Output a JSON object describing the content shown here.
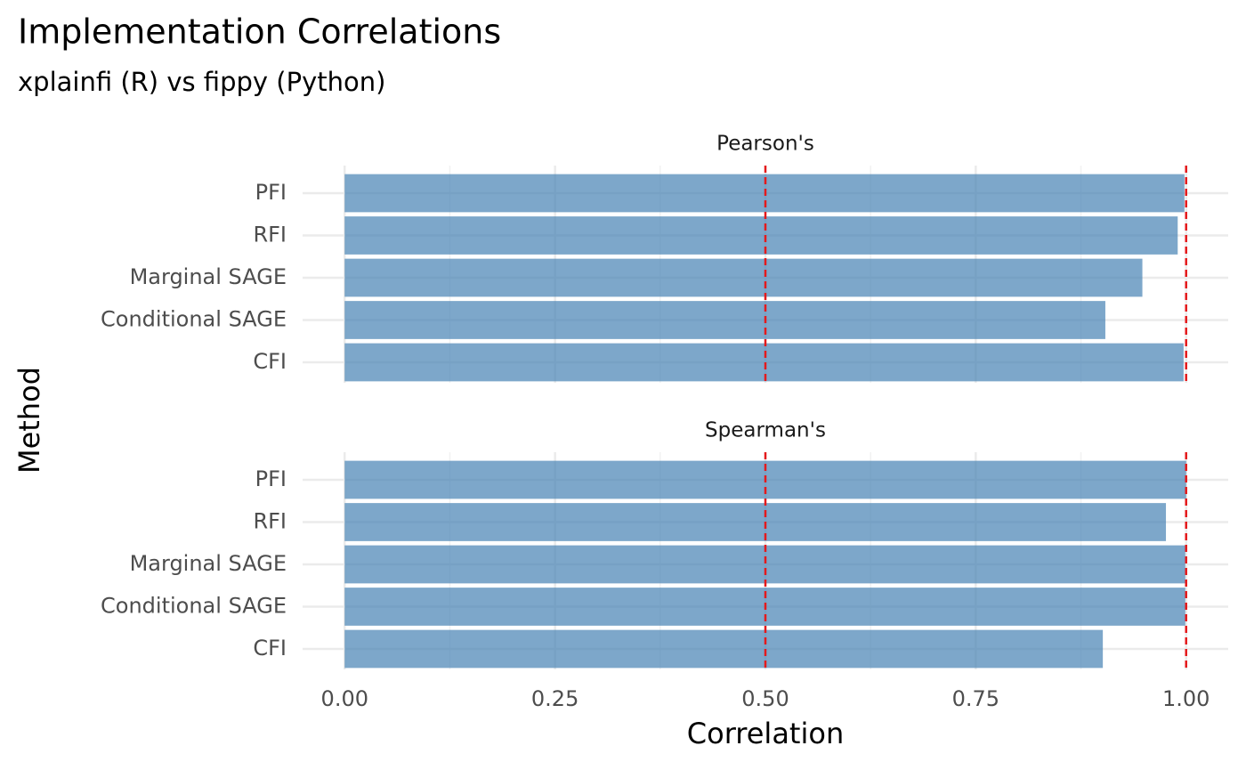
{
  "chart_data": {
    "type": "bar",
    "orientation": "horizontal",
    "facet": true,
    "title": "Implementation Correlations",
    "subtitle": "xplainfi (R) vs fippy (Python)",
    "x_label": "Correlation",
    "y_label": "Method",
    "categories": [
      "PFI",
      "RFI",
      "Marginal SAGE",
      "Conditional SAGE",
      "CFI"
    ],
    "series": [
      {
        "name": "Pearson's",
        "color": "#4682b4",
        "values": [
          0.998,
          0.99,
          0.948,
          0.904,
          0.997
        ]
      },
      {
        "name": "Spearman's",
        "color": "#4682b4",
        "values": [
          1.0,
          0.976,
          0.999,
          0.999,
          0.901
        ]
      }
    ],
    "alpha": 0.7,
    "xlim": [
      -0.05,
      1.05
    ],
    "xticks": [
      {
        "value": 0,
        "label": "0.00"
      },
      0.25,
      {
        "value": 0.5,
        "label": "0.50"
      },
      0.75,
      {
        "value": 1,
        "label": "1.00"
      }
    ],
    "minor_xticks": [
      0.125,
      0.375,
      0.625,
      0.875
    ],
    "grid": true,
    "reference_lines": [
      0.5,
      1
    ],
    "reference_color": "#e41a1c"
  }
}
